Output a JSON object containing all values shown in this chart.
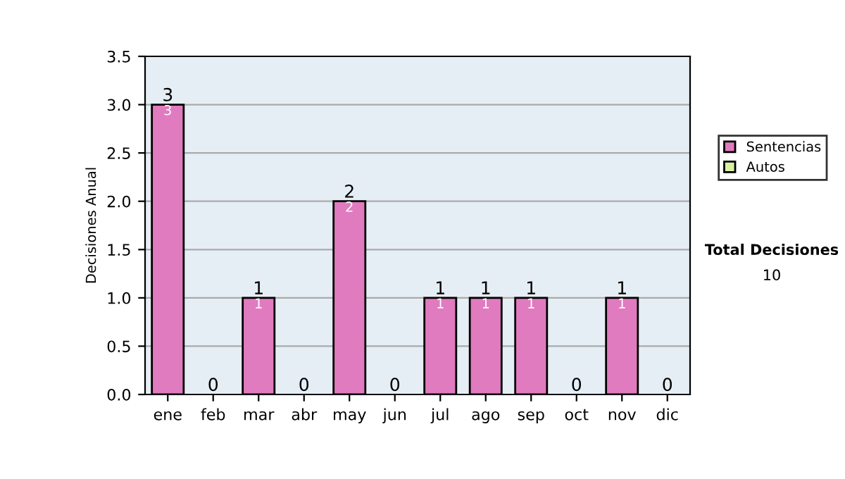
{
  "chart_data": {
    "type": "bar",
    "stacked": true,
    "ylabel": "Decisiones Anual",
    "categories": [
      "ene",
      "feb",
      "mar",
      "abr",
      "may",
      "jun",
      "jul",
      "ago",
      "sep",
      "oct",
      "nov",
      "dic"
    ],
    "series": [
      {
        "name": "Sentencias",
        "color": "#e07bbf",
        "values": [
          3,
          0,
          1,
          0,
          2,
          0,
          1,
          1,
          1,
          0,
          1,
          0
        ],
        "value_labels": [
          "3",
          null,
          "1",
          null,
          "2",
          null,
          "1",
          "1",
          "1",
          null,
          "1",
          null
        ]
      },
      {
        "name": "Autos",
        "color": "#d9f0a3",
        "values": [
          0,
          0,
          0,
          0,
          0,
          0,
          0,
          0,
          0,
          0,
          0,
          0
        ]
      }
    ],
    "totals": [
      "3",
      "0",
      "1",
      "0",
      "2",
      "0",
      "1",
      "1",
      "1",
      "0",
      "1",
      "0"
    ],
    "ylim": [
      0,
      3.5
    ],
    "yticks": [
      {
        "value": 0,
        "label": "0.0"
      },
      {
        "value": 0.5,
        "label": "0.5"
      },
      {
        "value": 1,
        "label": "1.0"
      },
      {
        "value": 1.5,
        "label": "1.5"
      },
      {
        "value": 2,
        "label": "2.0"
      },
      {
        "value": 2.5,
        "label": "2.5"
      },
      {
        "value": 3,
        "label": "3.0"
      },
      {
        "value": 3.5,
        "label": "3.5"
      }
    ],
    "grid": "y",
    "legend": "right",
    "annotations": [
      "Total Decisiones",
      "10"
    ]
  }
}
